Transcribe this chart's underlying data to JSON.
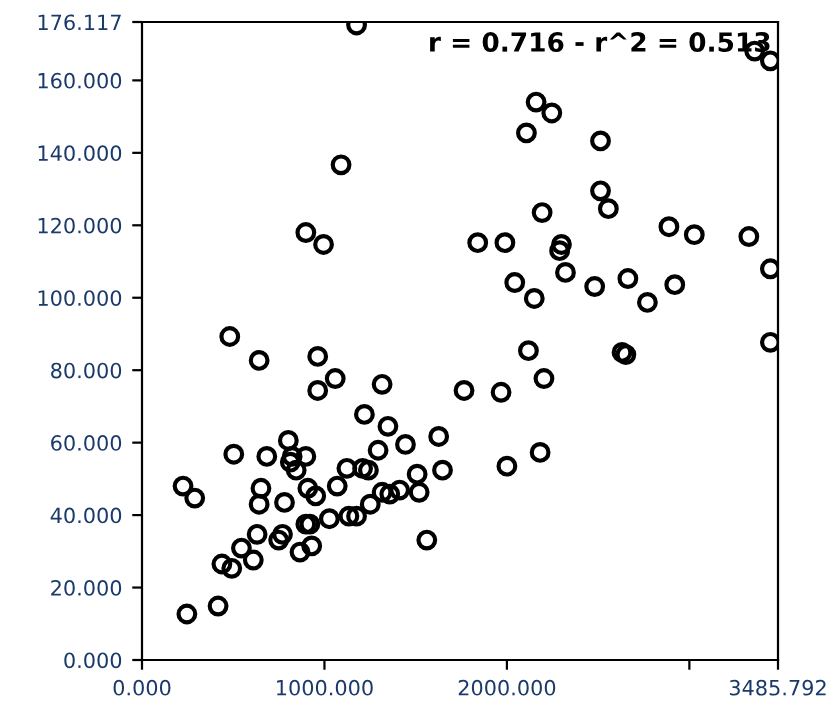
{
  "chart_data": {
    "type": "scatter",
    "annotations": [
      "r = 0.716 - r^2 = 0.513"
    ],
    "xlim": [
      0,
      3485.792
    ],
    "ylim": [
      0,
      176.117
    ],
    "xticks": [
      {
        "value": 0,
        "label": "0.000"
      },
      {
        "value": 1000,
        "label": "1000.000"
      },
      {
        "value": 2000,
        "label": "2000.000"
      },
      {
        "value": 3000,
        "label": null
      },
      {
        "value": 3485.792,
        "label": "3485.792"
      }
    ],
    "yticks": [
      {
        "value": 0,
        "label": "0.000"
      },
      {
        "value": 20,
        "label": "20.000"
      },
      {
        "value": 40,
        "label": "40.000"
      },
      {
        "value": 60,
        "label": "60.000"
      },
      {
        "value": 80,
        "label": "80.000"
      },
      {
        "value": 100,
        "label": "100.000"
      },
      {
        "value": 120,
        "label": "120.000"
      },
      {
        "value": 140,
        "label": "140.000"
      },
      {
        "value": 160,
        "label": "160.000"
      },
      {
        "value": 176.117,
        "label": "176.117"
      }
    ],
    "marker": "circle",
    "grid": false,
    "legend": false,
    "series": [
      {
        "color": "#000000",
        "x": [
          1176,
          1091,
          898,
          995,
          481,
          642,
          963,
          963,
          1059,
          1316,
          1219,
          1348,
          1294,
          1209,
          1123,
          1070,
          898,
          813,
          781,
          642,
          684,
          503,
          225,
          289,
          246,
          417,
          438,
          492,
          545,
          631,
          610,
          749,
          866,
          930,
          920,
          1027,
          1134,
          1176,
          1251,
          1316,
          1519,
          1508,
          952,
          1626,
          1647,
          1561,
          1765,
          2160,
          2246,
          2107,
          2513,
          2513,
          2556,
          2193,
          2888,
          3027,
          3326,
          1840,
          1989,
          2299,
          2289,
          2321,
          2043,
          2150,
          2481,
          2663,
          2920,
          2770,
          3444,
          3444,
          3358,
          2118,
          2631,
          2652,
          3444,
          1968,
          2203,
          2182,
          2000,
          823,
          845,
          909,
          770,
          898,
          1444,
          1412,
          1358,
          1241,
          652,
          802
        ],
        "values": [
          175.3,
          136.7,
          118,
          114.7,
          89.3,
          82.7,
          83.8,
          74.4,
          77.7,
          76.1,
          67.8,
          64.5,
          57.9,
          52.9,
          52.9,
          48,
          56.2,
          54.6,
          43.5,
          43,
          56.2,
          56.8,
          48,
          44.7,
          12.7,
          14.9,
          26.5,
          25.3,
          30.9,
          34.7,
          27.6,
          33.1,
          29.8,
          31.5,
          37.5,
          39,
          39.7,
          39.7,
          43,
          46.3,
          46.3,
          51.3,
          45.3,
          61.7,
          52.4,
          33.1,
          74.4,
          154,
          151,
          145.5,
          143.3,
          129.5,
          124.6,
          123.5,
          119.6,
          117.4,
          116.9,
          115.2,
          115.2,
          114.7,
          113,
          107,
          104.2,
          99.8,
          103.1,
          105.3,
          103.6,
          98.7,
          108,
          165.4,
          168.1,
          85.4,
          84.9,
          84.3,
          87.7,
          73.9,
          77.7,
          57.3,
          53.5,
          56.2,
          52.4,
          47.4,
          34.7,
          37.5,
          59.5,
          46.9,
          45.8,
          52.4,
          47.4,
          60.6
        ]
      }
    ]
  }
}
